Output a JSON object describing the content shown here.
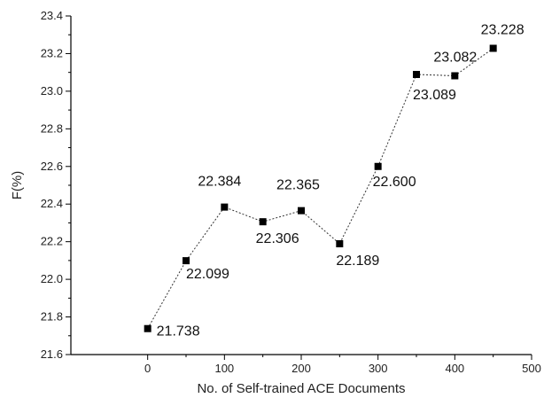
{
  "chart_data": {
    "type": "line",
    "title": "",
    "xlabel": "No. of Self-trained ACE Documents",
    "ylabel": "F(%)",
    "xlim": [
      -100,
      500
    ],
    "ylim": [
      21.6,
      23.4
    ],
    "xticks": [
      0,
      100,
      200,
      300,
      400,
      500
    ],
    "yticks": [
      "21.6",
      "21.8",
      "22.0",
      "22.2",
      "22.4",
      "22.6",
      "22.8",
      "23.0",
      "23.2",
      "23.4"
    ],
    "grid": false,
    "legend": "none",
    "line_style": "dotted",
    "marker": "square",
    "series": [
      {
        "x": [
          0,
          50,
          100,
          150,
          200,
          250,
          300,
          350,
          400,
          450
        ],
        "y": [
          21.738,
          22.099,
          22.384,
          22.306,
          22.365,
          22.189,
          22.6,
          23.089,
          23.082,
          23.228
        ],
        "labels": [
          "21.738",
          "22.099",
          "22.384",
          "22.306",
          "22.365",
          "22.189",
          "22.600",
          "23.089",
          "23.082",
          "23.228"
        ]
      }
    ]
  },
  "colors": {
    "line": "#333333",
    "marker": "#000000",
    "axis": "#000000"
  }
}
